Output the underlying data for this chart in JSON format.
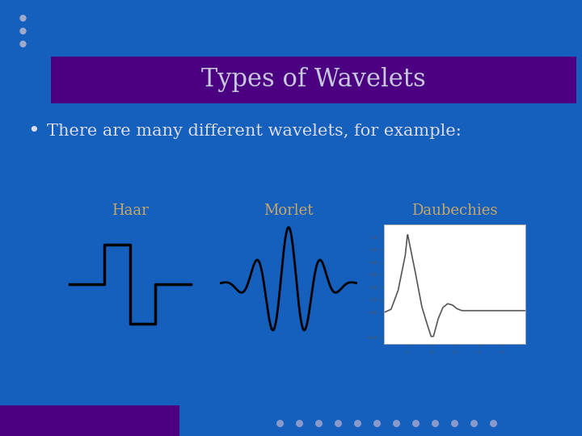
{
  "bg_color": "#1560BD",
  "title_bg_color": "#4B0082",
  "title_text": "Types of Wavelets",
  "title_text_color": "#C8C8DC",
  "bullet_text": "There are many different wavelets, for example:",
  "bullet_text_color": "#DCDCF0",
  "label_color": "#C8A868",
  "label_haar": "Haar",
  "label_morlet": "Morlet",
  "label_daubechies": "Daubechies",
  "dots_color": "#A0AACE",
  "nav_dot_color": "#8899CC",
  "nav_dot_active_color": "#4B0082",
  "haar_x": [
    -1.2,
    -0.5,
    -0.5,
    0.0,
    0.0,
    0.5,
    0.5,
    1.2
  ],
  "haar_y": [
    0.0,
    0.0,
    1.0,
    1.0,
    -1.0,
    -1.0,
    0.0,
    0.0
  ],
  "daub_pts_x": [
    0,
    0.3,
    0.6,
    0.9,
    1.0,
    1.3,
    1.6,
    1.8,
    2.0,
    2.1,
    2.3,
    2.5,
    2.7,
    2.9,
    3.1,
    3.3,
    3.5,
    3.8,
    4.0,
    4.5,
    5.0,
    5.5,
    6.0
  ],
  "daub_pts_y": [
    0,
    0.05,
    0.35,
    0.9,
    1.25,
    0.7,
    0.1,
    -0.15,
    -0.38,
    -0.38,
    -0.1,
    0.08,
    0.14,
    0.12,
    0.06,
    0.03,
    0.03,
    0.03,
    0.03,
    0.03,
    0.03,
    0.03,
    0.03
  ]
}
